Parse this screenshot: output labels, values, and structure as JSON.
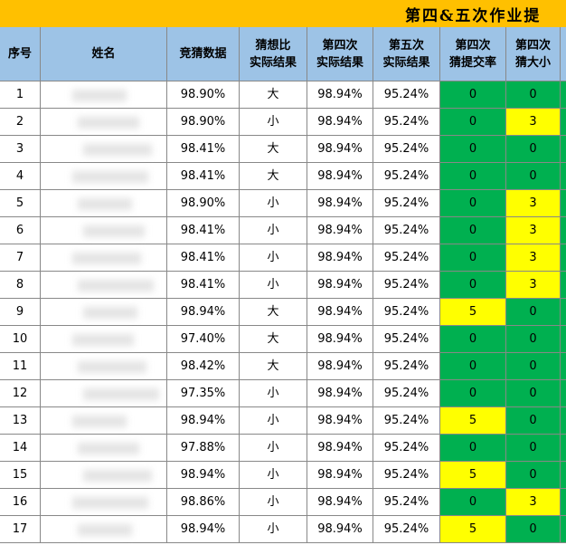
{
  "title": "第四&五次作业提",
  "headers": [
    [
      "序号"
    ],
    [
      "姓名"
    ],
    [
      "竞猜数据"
    ],
    [
      "猜想比",
      "实际结果"
    ],
    [
      "第四次",
      "实际结果"
    ],
    [
      "第五次",
      "实际结果"
    ],
    [
      "第四次",
      "猜提交率"
    ],
    [
      "第四次",
      "猜大小"
    ]
  ],
  "table": {
    "rows": [
      [
        1,
        "98.90%",
        "大",
        "98.94%",
        "95.24%",
        0,
        0
      ],
      [
        2,
        "98.90%",
        "小",
        "98.94%",
        "95.24%",
        0,
        3
      ],
      [
        3,
        "98.41%",
        "大",
        "98.94%",
        "95.24%",
        0,
        0
      ],
      [
        4,
        "98.41%",
        "大",
        "98.94%",
        "95.24%",
        0,
        0
      ],
      [
        5,
        "98.90%",
        "小",
        "98.94%",
        "95.24%",
        0,
        3
      ],
      [
        6,
        "98.41%",
        "小",
        "98.94%",
        "95.24%",
        0,
        3
      ],
      [
        7,
        "98.41%",
        "小",
        "98.94%",
        "95.24%",
        0,
        3
      ],
      [
        8,
        "98.41%",
        "小",
        "98.94%",
        "95.24%",
        0,
        3
      ],
      [
        9,
        "98.94%",
        "大",
        "98.94%",
        "95.24%",
        5,
        0
      ],
      [
        10,
        "97.40%",
        "大",
        "98.94%",
        "95.24%",
        0,
        0
      ],
      [
        11,
        "98.42%",
        "大",
        "98.94%",
        "95.24%",
        0,
        0
      ],
      [
        12,
        "97.35%",
        "小",
        "98.94%",
        "95.24%",
        0,
        0
      ],
      [
        13,
        "98.94%",
        "小",
        "98.94%",
        "95.24%",
        5,
        0
      ],
      [
        14,
        "97.88%",
        "小",
        "98.94%",
        "95.24%",
        0,
        0
      ],
      [
        15,
        "98.94%",
        "小",
        "98.94%",
        "95.24%",
        5,
        0
      ],
      [
        16,
        "98.86%",
        "小",
        "98.94%",
        "95.24%",
        0,
        3
      ],
      [
        17,
        "98.94%",
        "小",
        "98.94%",
        "95.24%",
        5,
        0
      ]
    ]
  }
}
